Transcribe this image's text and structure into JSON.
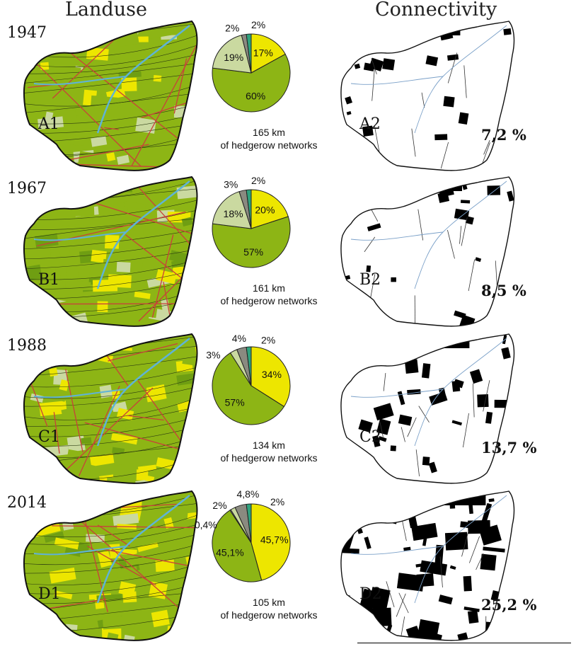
{
  "titles": {
    "landuse": "Landuse",
    "connectivity": "Connectivity"
  },
  "colors": {
    "yellow": "#ede600",
    "green": "#8db515",
    "lightgreen": "#cad9a0",
    "grey": "#8a8a80",
    "teal": "#2ea27e",
    "hedgerow_red": "#c8413a",
    "river": "#5fb3d6"
  },
  "rows": [
    {
      "year": "1947",
      "map_label": "A1",
      "conn_label": "A2",
      "km_value": "165 km",
      "km_caption": "of hedgerow networks",
      "connectivity": "7,2 %",
      "slices": [
        {
          "key": "yellow",
          "value": 17,
          "label": "17%"
        },
        {
          "key": "green",
          "value": 60,
          "label": "60%"
        },
        {
          "key": "lightgreen",
          "value": 19,
          "label": "19%"
        },
        {
          "key": "grey",
          "value": 2,
          "label": "2%"
        },
        {
          "key": "teal",
          "value": 2,
          "label": "2%"
        }
      ]
    },
    {
      "year": "1967",
      "map_label": "B1",
      "conn_label": "B2",
      "km_value": "161 km",
      "km_caption": "of hedgerow networks",
      "connectivity": "8,5 %",
      "slices": [
        {
          "key": "yellow",
          "value": 20,
          "label": "20%"
        },
        {
          "key": "green",
          "value": 57,
          "label": "57%"
        },
        {
          "key": "lightgreen",
          "value": 18,
          "label": "18%"
        },
        {
          "key": "grey",
          "value": 3,
          "label": "3%"
        },
        {
          "key": "teal",
          "value": 2,
          "label": "2%"
        }
      ]
    },
    {
      "year": "1988",
      "map_label": "C1",
      "conn_label": "C2",
      "km_value": "134 km",
      "km_caption": "of hedgerow networks",
      "connectivity": "13,7 %",
      "slices": [
        {
          "key": "yellow",
          "value": 34,
          "label": "34%"
        },
        {
          "key": "green",
          "value": 57,
          "label": "57%"
        },
        {
          "key": "lightgreen",
          "value": 3,
          "label": "3%"
        },
        {
          "key": "grey",
          "value": 4,
          "label": "4%"
        },
        {
          "key": "teal",
          "value": 2,
          "label": "2%"
        }
      ]
    },
    {
      "year": "2014",
      "map_label": "D1",
      "conn_label": "D2",
      "km_value": "105 km",
      "km_caption": "of hedgerow networks",
      "connectivity": "25,2 %",
      "slices": [
        {
          "key": "yellow",
          "value": 45.7,
          "label": "45,7%"
        },
        {
          "key": "green",
          "value": 45.1,
          "label": "45,1%"
        },
        {
          "key": "extra",
          "value": 0.4,
          "label": "0,4%"
        },
        {
          "key": "lightgreen",
          "value": 2,
          "label": "2%"
        },
        {
          "key": "grey",
          "value": 4.8,
          "label": "4,8%"
        },
        {
          "key": "teal",
          "value": 2,
          "label": "2%"
        }
      ]
    }
  ]
}
